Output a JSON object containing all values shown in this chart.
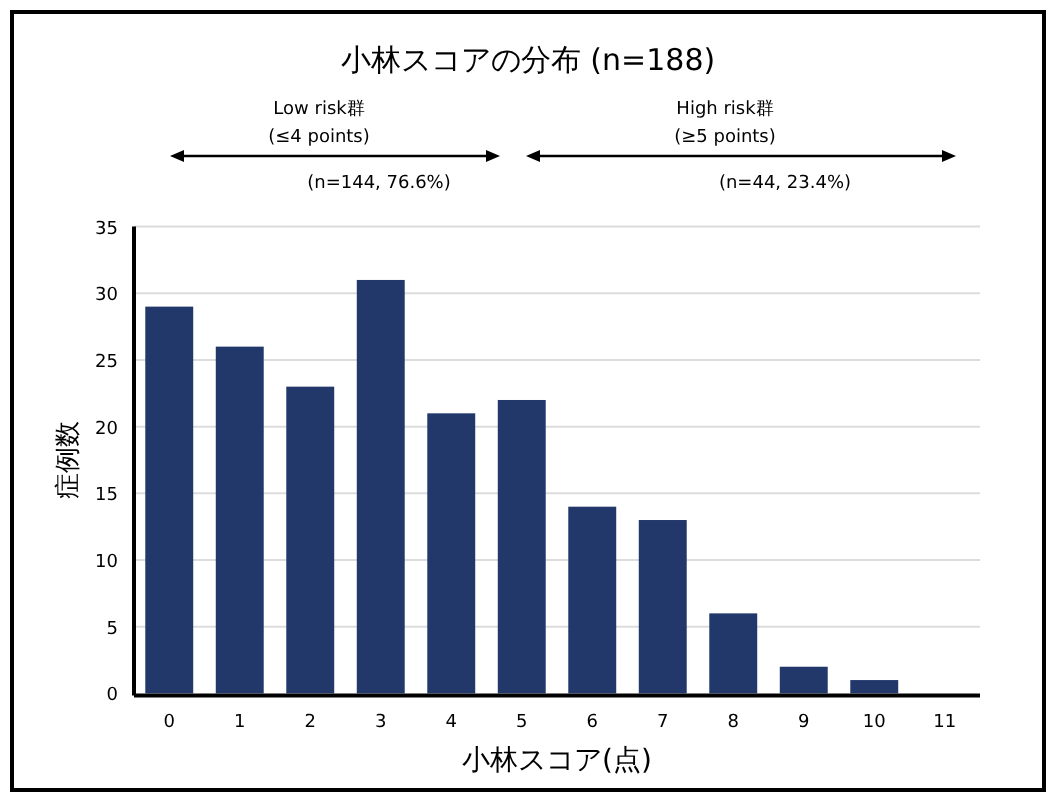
{
  "chart_data": {
    "type": "bar",
    "title": "小林スコアの分布 (n=188)",
    "xlabel": "小林スコア(点)",
    "ylabel": "症例数",
    "categories": [
      "0",
      "1",
      "2",
      "3",
      "4",
      "5",
      "6",
      "7",
      "8",
      "9",
      "10",
      "11"
    ],
    "values": [
      29,
      26,
      23,
      31,
      21,
      22,
      14,
      13,
      6,
      2,
      1,
      0
    ],
    "color": "#22386b",
    "ylim": [
      0,
      35
    ],
    "yticks": [
      0,
      5,
      10,
      15,
      20,
      25,
      30,
      35
    ],
    "grid": "y",
    "annotations": [
      "Low risk群",
      "(≤4 points)",
      "(n=144, 76.6%)",
      "High risk群",
      "(≥5 points)",
      "(n=44, 23.4%)"
    ]
  }
}
